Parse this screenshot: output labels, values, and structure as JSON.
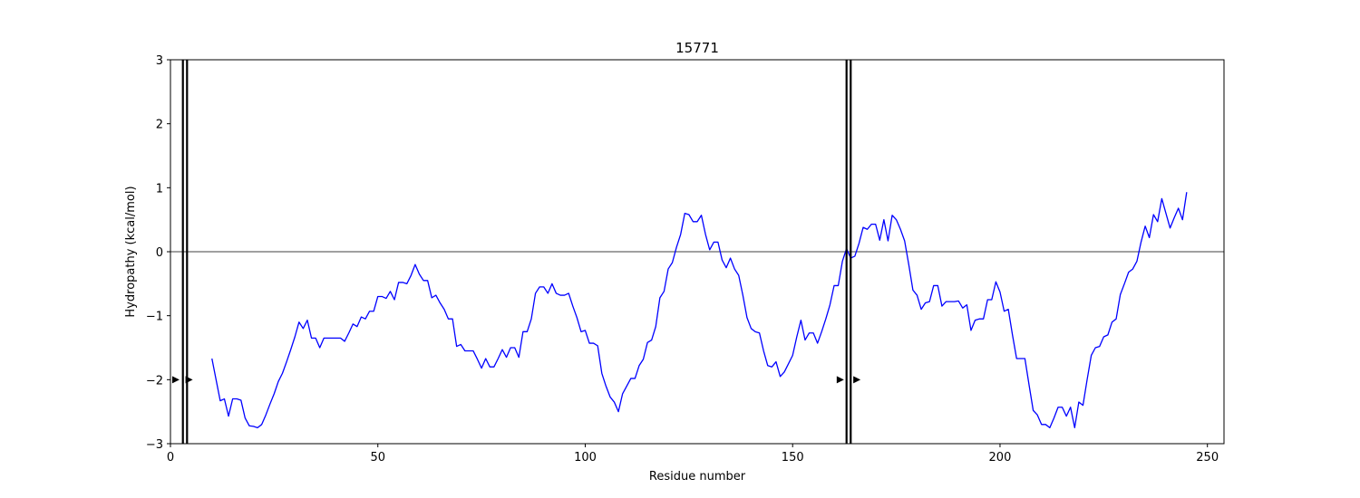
{
  "chart_data": {
    "type": "line",
    "title": "15771",
    "xlabel": "Residue number",
    "ylabel": "Hydropathy (kcal/mol)",
    "xlim": [
      0,
      254
    ],
    "ylim": [
      -3,
      3
    ],
    "xticks": [
      0,
      50,
      100,
      150,
      200,
      250
    ],
    "yticks": [
      -3,
      -2,
      -1,
      0,
      1,
      2,
      3
    ],
    "grid": false,
    "zero_line": true,
    "line_color": "#0000ff",
    "series": [
      {
        "x": [
          10,
          11,
          12,
          13,
          14,
          15,
          16,
          17,
          18,
          19,
          20,
          21,
          22,
          23,
          24,
          25,
          26,
          27,
          28,
          29,
          30,
          31,
          32,
          33,
          34,
          35,
          36,
          37,
          38,
          39,
          40,
          41,
          42,
          43,
          44,
          45,
          46,
          47,
          48,
          49,
          50,
          51,
          52,
          53,
          54,
          55,
          56,
          57,
          58,
          59,
          60,
          61,
          62,
          63,
          64,
          65,
          66,
          67,
          68,
          69,
          70,
          71,
          72,
          73,
          74,
          75,
          76,
          77,
          78,
          79,
          80,
          81,
          82,
          83,
          84,
          85,
          86,
          87,
          88,
          89,
          90,
          91,
          92,
          93,
          94,
          95,
          96,
          97,
          98,
          99,
          100,
          101,
          102,
          103,
          104,
          105,
          106,
          107,
          108,
          109,
          110,
          111,
          112,
          113,
          114,
          115,
          116,
          117,
          118,
          119,
          120,
          121,
          122,
          123,
          124,
          125,
          126,
          127,
          128,
          129,
          130,
          131,
          132,
          133,
          134,
          135,
          136,
          137,
          138,
          139,
          140,
          141,
          142,
          143,
          144,
          145,
          146,
          147,
          148,
          149,
          150,
          151,
          152,
          153,
          154,
          155,
          156,
          157,
          158,
          159,
          160,
          161,
          162,
          163,
          164,
          165,
          166,
          167,
          168,
          169,
          170,
          171,
          172,
          173,
          174,
          175,
          176,
          177,
          178,
          179,
          180,
          181,
          182,
          183,
          184,
          185,
          186,
          187,
          188,
          189,
          190,
          191,
          192,
          193,
          194,
          195,
          196,
          197,
          198,
          199,
          200,
          201,
          202,
          203,
          204,
          205,
          206,
          207,
          208,
          209,
          210,
          211,
          212,
          213,
          214,
          215,
          216,
          217,
          218,
          219,
          220,
          221,
          222,
          223,
          224,
          225,
          226,
          227,
          228,
          229,
          230,
          231,
          232,
          233,
          234,
          235,
          236,
          237,
          238,
          239,
          240,
          241,
          242,
          243,
          244,
          245
        ],
        "y": [
          -1.67,
          -2.0,
          -2.33,
          -2.3,
          -2.57,
          -2.3,
          -2.3,
          -2.32,
          -2.6,
          -2.72,
          -2.73,
          -2.75,
          -2.7,
          -2.55,
          -2.38,
          -2.22,
          -2.03,
          -1.9,
          -1.72,
          -1.53,
          -1.33,
          -1.1,
          -1.2,
          -1.07,
          -1.35,
          -1.35,
          -1.5,
          -1.35,
          -1.35,
          -1.35,
          -1.35,
          -1.35,
          -1.4,
          -1.27,
          -1.13,
          -1.17,
          -1.02,
          -1.05,
          -0.93,
          -0.93,
          -0.7,
          -0.7,
          -0.73,
          -0.62,
          -0.75,
          -0.48,
          -0.48,
          -0.5,
          -0.37,
          -0.2,
          -0.35,
          -0.45,
          -0.45,
          -0.72,
          -0.68,
          -0.8,
          -0.9,
          -1.05,
          -1.05,
          -1.48,
          -1.45,
          -1.55,
          -1.55,
          -1.55,
          -1.68,
          -1.82,
          -1.67,
          -1.8,
          -1.8,
          -1.67,
          -1.53,
          -1.65,
          -1.5,
          -1.5,
          -1.65,
          -1.25,
          -1.25,
          -1.05,
          -0.65,
          -0.55,
          -0.55,
          -0.65,
          -0.5,
          -0.65,
          -0.68,
          -0.68,
          -0.65,
          -0.85,
          -1.03,
          -1.25,
          -1.23,
          -1.43,
          -1.43,
          -1.47,
          -1.9,
          -2.1,
          -2.27,
          -2.35,
          -2.5,
          -2.22,
          -2.1,
          -1.98,
          -1.98,
          -1.78,
          -1.68,
          -1.42,
          -1.38,
          -1.17,
          -0.72,
          -0.62,
          -0.27,
          -0.17,
          0.07,
          0.27,
          0.6,
          0.58,
          0.47,
          0.47,
          0.57,
          0.27,
          0.03,
          0.15,
          0.15,
          -0.13,
          -0.25,
          -0.1,
          -0.27,
          -0.37,
          -0.68,
          -1.03,
          -1.2,
          -1.25,
          -1.27,
          -1.55,
          -1.78,
          -1.8,
          -1.72,
          -1.95,
          -1.88,
          -1.75,
          -1.62,
          -1.33,
          -1.07,
          -1.38,
          -1.27,
          -1.27,
          -1.43,
          -1.25,
          -1.05,
          -0.83,
          -0.53,
          -0.53,
          -0.15,
          0.05,
          -0.1,
          -0.07,
          0.13,
          0.38,
          0.35,
          0.43,
          0.43,
          0.18,
          0.5,
          0.17,
          0.57,
          0.5,
          0.35,
          0.17,
          -0.2,
          -0.6,
          -0.68,
          -0.9,
          -0.8,
          -0.78,
          -0.53,
          -0.53,
          -0.85,
          -0.78,
          -0.78,
          -0.78,
          -0.77,
          -0.88,
          -0.83,
          -1.23,
          -1.07,
          -1.05,
          -1.05,
          -0.75,
          -0.75,
          -0.47,
          -0.63,
          -0.93,
          -0.9,
          -1.3,
          -1.67,
          -1.67,
          -1.67,
          -2.08,
          -2.48,
          -2.55,
          -2.7,
          -2.7,
          -2.75,
          -2.6,
          -2.43,
          -2.43,
          -2.57,
          -2.43,
          -2.75,
          -2.35,
          -2.4,
          -2.0,
          -1.62,
          -1.5,
          -1.48,
          -1.33,
          -1.3,
          -1.1,
          -1.05,
          -0.67,
          -0.5,
          -0.32,
          -0.27,
          -0.15,
          0.15,
          0.4,
          0.22,
          0.58,
          0.47,
          0.83,
          0.6,
          0.37,
          0.53,
          0.68,
          0.5,
          0.93
        ]
      }
    ],
    "vertical_lines": [
      3,
      4,
      163,
      164
    ],
    "markers": [
      {
        "x": 1.3,
        "y": -2
      },
      {
        "x": 4.5,
        "y": -2
      },
      {
        "x": 161.5,
        "y": -2
      },
      {
        "x": 165.5,
        "y": -2
      }
    ]
  }
}
